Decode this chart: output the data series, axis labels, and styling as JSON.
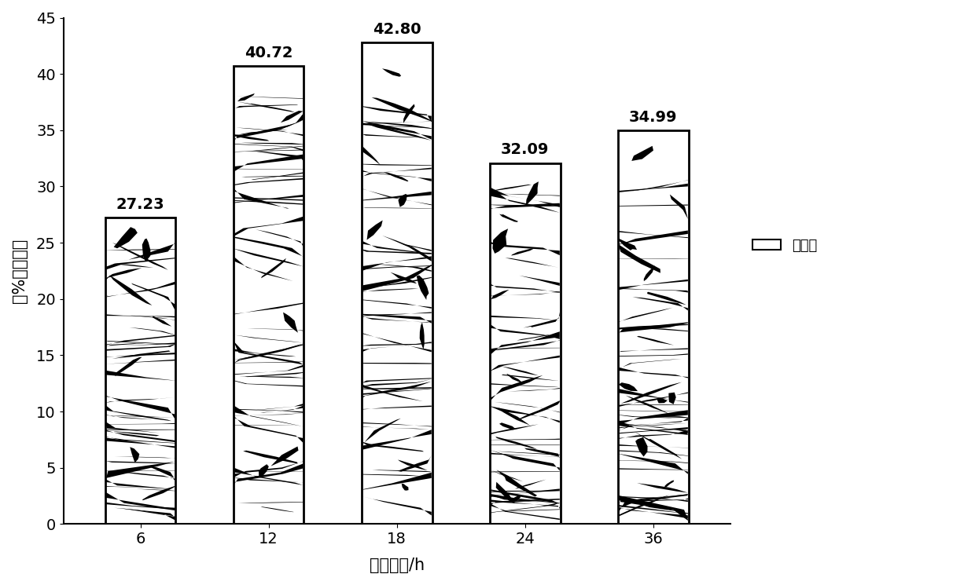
{
  "categories": [
    "6",
    "12",
    "18",
    "24",
    "36"
  ],
  "values": [
    27.23,
    40.72,
    42.8,
    32.09,
    34.99
  ],
  "bar_color": "white",
  "bar_edge_color": "black",
  "bar_edge_width": 2.0,
  "xlabel": "作用时间/h",
  "ylabel": "（%）杀藻率",
  "ylim": [
    0,
    45
  ],
  "yticks": [
    0,
    5,
    10,
    15,
    20,
    25,
    30,
    35,
    40,
    45
  ],
  "legend_label": "杀藻率",
  "bar_width": 0.55,
  "label_fontsize": 15,
  "tick_fontsize": 14,
  "value_fontsize": 14,
  "legend_fontsize": 13,
  "background_color": "white",
  "figure_width": 12.4,
  "figure_height": 7.45
}
